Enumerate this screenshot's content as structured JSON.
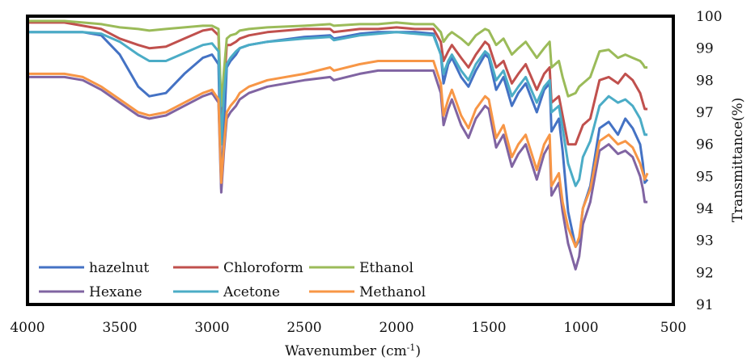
{
  "chart_data": {
    "type": "line",
    "title": "",
    "xlabel": "Wavenumber (cm",
    "xlabel_sup": "-1",
    "xlabel_suffix": ")",
    "ylabel": "Transmittance(%)",
    "xlim": [
      4000,
      500
    ],
    "ylim": [
      91,
      100
    ],
    "x_axis_reversed": true,
    "x_ticks": [
      "4000",
      "3500",
      "3000",
      "2500",
      "2000",
      "1500",
      "1000",
      "500"
    ],
    "y_ticks": [
      "91",
      "92",
      "93",
      "94",
      "95",
      "96",
      "97",
      "98",
      "99",
      "100"
    ],
    "grid": false,
    "legend_position": "bottom-left inside plot",
    "series": [
      {
        "name": "hazelnut",
        "color": "#4472C4",
        "x": [
          4000,
          3800,
          3700,
          3600,
          3500,
          3400,
          3340,
          3250,
          3150,
          3050,
          3000,
          2965,
          2950,
          2935,
          2920,
          2900,
          2870,
          2850,
          2800,
          2700,
          2500,
          2360,
          2340,
          2200,
          2100,
          2000,
          1900,
          1800,
          1760,
          1745,
          1720,
          1700,
          1650,
          1610,
          1570,
          1520,
          1500,
          1460,
          1420,
          1375,
          1340,
          1300,
          1240,
          1200,
          1170,
          1160,
          1120,
          1100,
          1070,
          1030,
          1010,
          990,
          950,
          900,
          850,
          800,
          760,
          720,
          680,
          665,
          655,
          640
        ],
        "y": [
          99.5,
          99.5,
          99.5,
          99.4,
          98.8,
          97.8,
          97.5,
          97.6,
          98.2,
          98.7,
          98.8,
          98.5,
          94.6,
          96.5,
          98.4,
          98.6,
          98.8,
          99.0,
          99.1,
          99.2,
          99.35,
          99.4,
          99.3,
          99.45,
          99.5,
          99.5,
          99.5,
          99.45,
          98.8,
          97.9,
          98.5,
          98.7,
          98.1,
          97.8,
          98.3,
          98.8,
          98.7,
          97.7,
          98.1,
          97.2,
          97.6,
          97.9,
          97.0,
          97.7,
          97.9,
          96.4,
          96.8,
          95.8,
          93.9,
          92.8,
          93.0,
          94.0,
          94.7,
          96.5,
          96.7,
          96.3,
          96.8,
          96.5,
          96.0,
          95.4,
          94.8,
          94.9
        ]
      },
      {
        "name": "Chloroform",
        "color": "#C0504D",
        "x": [
          4000,
          3800,
          3700,
          3600,
          3500,
          3400,
          3340,
          3250,
          3150,
          3050,
          3000,
          2965,
          2950,
          2935,
          2920,
          2900,
          2870,
          2850,
          2800,
          2700,
          2500,
          2360,
          2340,
          2200,
          2100,
          2000,
          1900,
          1800,
          1760,
          1745,
          1720,
          1700,
          1650,
          1610,
          1570,
          1520,
          1500,
          1460,
          1420,
          1375,
          1340,
          1300,
          1240,
          1200,
          1170,
          1160,
          1120,
          1100,
          1070,
          1030,
          1010,
          990,
          950,
          900,
          850,
          800,
          760,
          720,
          680,
          665,
          655,
          640
        ],
        "y": [
          99.8,
          99.8,
          99.7,
          99.6,
          99.3,
          99.1,
          99.0,
          99.05,
          99.3,
          99.55,
          99.6,
          99.4,
          96.6,
          97.8,
          99.1,
          99.1,
          99.2,
          99.3,
          99.4,
          99.5,
          99.6,
          99.6,
          99.5,
          99.6,
          99.6,
          99.65,
          99.6,
          99.6,
          99.2,
          98.6,
          98.9,
          99.1,
          98.7,
          98.4,
          98.8,
          99.2,
          99.1,
          98.4,
          98.6,
          97.9,
          98.2,
          98.5,
          97.7,
          98.2,
          98.4,
          97.3,
          97.5,
          96.9,
          96.0,
          96.0,
          96.3,
          96.6,
          96.8,
          98.0,
          98.1,
          97.9,
          98.2,
          98.0,
          97.6,
          97.3,
          97.1,
          97.1
        ]
      },
      {
        "name": "Ethanol",
        "color": "#9BBB59",
        "x": [
          4000,
          3800,
          3700,
          3600,
          3500,
          3400,
          3340,
          3250,
          3150,
          3050,
          3000,
          2965,
          2950,
          2935,
          2920,
          2900,
          2870,
          2850,
          2800,
          2700,
          2500,
          2360,
          2340,
          2200,
          2100,
          2000,
          1900,
          1800,
          1760,
          1745,
          1720,
          1700,
          1650,
          1610,
          1570,
          1520,
          1500,
          1460,
          1420,
          1375,
          1340,
          1300,
          1240,
          1200,
          1170,
          1160,
          1120,
          1100,
          1070,
          1030,
          1010,
          990,
          950,
          900,
          850,
          800,
          760,
          720,
          680,
          665,
          655,
          640
        ],
        "y": [
          99.85,
          99.85,
          99.8,
          99.75,
          99.65,
          99.6,
          99.55,
          99.6,
          99.65,
          99.7,
          99.7,
          99.6,
          97.2,
          98.3,
          99.3,
          99.4,
          99.45,
          99.55,
          99.6,
          99.65,
          99.7,
          99.75,
          99.7,
          99.75,
          99.75,
          99.8,
          99.75,
          99.75,
          99.5,
          99.2,
          99.4,
          99.5,
          99.3,
          99.1,
          99.4,
          99.6,
          99.55,
          99.1,
          99.3,
          98.8,
          99.0,
          99.2,
          98.7,
          99.0,
          99.2,
          98.4,
          98.6,
          98.1,
          97.5,
          97.6,
          97.8,
          97.9,
          98.1,
          98.9,
          98.95,
          98.7,
          98.8,
          98.7,
          98.6,
          98.5,
          98.4,
          98.4
        ]
      },
      {
        "name": "Hexane",
        "color": "#8064A2",
        "x": [
          4000,
          3800,
          3700,
          3600,
          3500,
          3400,
          3340,
          3250,
          3150,
          3050,
          3000,
          2965,
          2950,
          2935,
          2920,
          2900,
          2870,
          2850,
          2800,
          2700,
          2500,
          2360,
          2340,
          2200,
          2100,
          2000,
          1900,
          1800,
          1760,
          1745,
          1720,
          1700,
          1650,
          1610,
          1570,
          1520,
          1500,
          1460,
          1420,
          1375,
          1340,
          1300,
          1240,
          1200,
          1170,
          1160,
          1120,
          1100,
          1070,
          1030,
          1010,
          990,
          950,
          900,
          850,
          800,
          760,
          720,
          680,
          665,
          655,
          640
        ],
        "y": [
          98.1,
          98.1,
          98.0,
          97.7,
          97.3,
          96.9,
          96.8,
          96.9,
          97.2,
          97.5,
          97.6,
          97.3,
          94.5,
          95.8,
          96.8,
          97.0,
          97.2,
          97.4,
          97.6,
          97.8,
          98.0,
          98.1,
          98.0,
          98.2,
          98.3,
          98.3,
          98.3,
          98.3,
          97.6,
          96.6,
          97.1,
          97.4,
          96.6,
          96.2,
          96.8,
          97.2,
          97.1,
          95.9,
          96.3,
          95.3,
          95.7,
          96.0,
          94.9,
          95.7,
          96.0,
          94.4,
          94.8,
          93.9,
          92.9,
          92.1,
          92.5,
          93.5,
          94.2,
          95.8,
          96.0,
          95.7,
          95.8,
          95.6,
          95.0,
          94.6,
          94.2,
          94.2
        ]
      },
      {
        "name": "Acetone",
        "color": "#4BACC6",
        "x": [
          4000,
          3800,
          3700,
          3600,
          3500,
          3400,
          3340,
          3250,
          3150,
          3050,
          3000,
          2965,
          2950,
          2935,
          2920,
          2900,
          2870,
          2850,
          2800,
          2700,
          2500,
          2360,
          2340,
          2200,
          2100,
          2000,
          1900,
          1800,
          1760,
          1745,
          1720,
          1700,
          1650,
          1610,
          1570,
          1520,
          1500,
          1460,
          1420,
          1375,
          1340,
          1300,
          1240,
          1200,
          1170,
          1160,
          1120,
          1100,
          1070,
          1030,
          1010,
          990,
          950,
          900,
          850,
          800,
          760,
          720,
          680,
          665,
          655,
          640
        ],
        "y": [
          99.5,
          99.5,
          99.5,
          99.45,
          99.2,
          98.8,
          98.6,
          98.6,
          98.85,
          99.1,
          99.15,
          98.9,
          96.0,
          97.6,
          98.5,
          98.7,
          98.9,
          99.0,
          99.1,
          99.2,
          99.3,
          99.35,
          99.25,
          99.4,
          99.45,
          99.5,
          99.45,
          99.4,
          98.8,
          98.2,
          98.6,
          98.8,
          98.3,
          98.0,
          98.5,
          98.9,
          98.8,
          98.0,
          98.3,
          97.5,
          97.8,
          98.1,
          97.3,
          97.8,
          98.0,
          97.0,
          97.2,
          96.5,
          95.4,
          94.7,
          94.9,
          95.6,
          96.1,
          97.2,
          97.5,
          97.3,
          97.4,
          97.2,
          96.8,
          96.5,
          96.3,
          96.3
        ]
      },
      {
        "name": "Methanol",
        "color": "#F79646",
        "x": [
          4000,
          3800,
          3700,
          3600,
          3500,
          3400,
          3340,
          3250,
          3150,
          3050,
          3000,
          2965,
          2950,
          2935,
          2920,
          2900,
          2870,
          2850,
          2800,
          2700,
          2500,
          2360,
          2340,
          2200,
          2100,
          2000,
          1900,
          1800,
          1760,
          1745,
          1720,
          1700,
          1650,
          1610,
          1570,
          1520,
          1500,
          1460,
          1420,
          1375,
          1340,
          1300,
          1240,
          1200,
          1170,
          1160,
          1120,
          1100,
          1070,
          1030,
          1010,
          990,
          950,
          900,
          850,
          800,
          760,
          720,
          680,
          665,
          655,
          640
        ],
        "y": [
          98.2,
          98.2,
          98.1,
          97.8,
          97.4,
          97.0,
          96.9,
          97.0,
          97.3,
          97.6,
          97.7,
          97.4,
          94.8,
          96.0,
          97.0,
          97.2,
          97.4,
          97.6,
          97.8,
          98.0,
          98.2,
          98.4,
          98.3,
          98.5,
          98.6,
          98.6,
          98.6,
          98.6,
          97.9,
          96.9,
          97.4,
          97.7,
          96.9,
          96.5,
          97.1,
          97.5,
          97.4,
          96.2,
          96.6,
          95.6,
          96.0,
          96.3,
          95.2,
          96.0,
          96.3,
          94.7,
          95.1,
          94.2,
          93.4,
          92.8,
          93.1,
          94.0,
          94.6,
          96.1,
          96.3,
          96.0,
          96.1,
          95.9,
          95.4,
          95.1,
          94.9,
          95.1
        ]
      }
    ]
  }
}
